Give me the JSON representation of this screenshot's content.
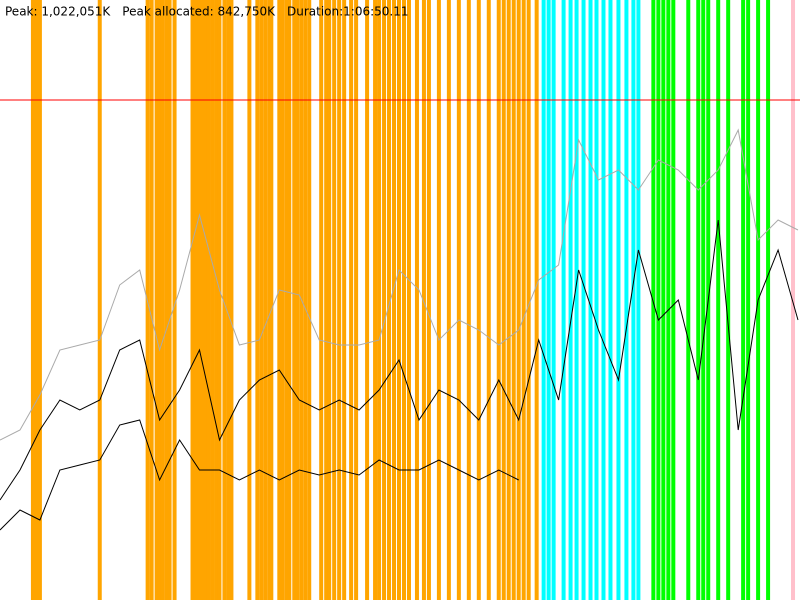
{
  "chart_data": {
    "type": "line",
    "header": [
      "Peak: 1,022,051K",
      "Peak allocated: 842,750K",
      "Duration:1:06:50.11"
    ],
    "xlim": [
      0,
      4010
    ],
    "ylim": [
      0,
      1226461
    ],
    "peak_line": {
      "value": 1022051,
      "color": "#ff0000"
    },
    "x": [
      0,
      100,
      200,
      300,
      400,
      500,
      600,
      700,
      800,
      900,
      1000,
      1100,
      1200,
      1300,
      1400,
      1500,
      1600,
      1700,
      1800,
      1900,
      2000,
      2100,
      2200,
      2300,
      2400,
      2500,
      2600,
      2700,
      2800,
      2900,
      3000,
      3100,
      3200,
      3300,
      3400,
      3500,
      3600,
      3700,
      3800,
      3900,
      4000
    ],
    "events": [
      {
        "color": "#ffa500",
        "x": [
          165,
          175,
          190,
          200,
          500,
          740,
          760,
          785,
          800,
          815,
          835,
          850,
          875,
          965,
          980,
          1000,
          1015,
          1030,
          1045,
          1065,
          1085,
          1100,
          1125,
          1145,
          1160,
          1250,
          1290,
          1310,
          1330,
          1350,
          1360,
          1400,
          1415,
          1435,
          1450,
          1475,
          1490,
          1510,
          1530,
          1550,
          1610,
          1635,
          1650,
          1675,
          1700,
          1725,
          1760,
          1785,
          1840,
          1880,
          1900,
          1925,
          1950,
          1975,
          2000,
          2025,
          2050,
          2090,
          2125,
          2150,
          2200,
          2250,
          2300,
          2350,
          2400,
          2450,
          2500,
          2525,
          2550,
          2575,
          2600,
          2625,
          2650,
          2690
        ]
      },
      {
        "color": "#00ffff",
        "x": [
          2725,
          2750,
          2775,
          2825,
          2860,
          2890,
          2925,
          2960,
          2990,
          3025,
          3060,
          3100,
          3140,
          3175,
          3200
        ]
      },
      {
        "color": "#00ff00",
        "x": [
          3275,
          3300,
          3325,
          3350,
          3375,
          3450,
          3500,
          3525,
          3550,
          3600,
          3650,
          3725,
          3750,
          3800,
          3850
        ]
      },
      {
        "color": "#ffc0cb",
        "x": [
          3975
        ]
      }
    ],
    "series": [
      {
        "color": "#aaaaaa",
        "values": [
          327000,
          347500,
          419000,
          511000,
          521200,
          531400,
          643900,
          674500,
          511000,
          633600,
          787000,
          633600,
          521200,
          531400,
          633600,
          623400,
          531400,
          521200,
          521200,
          531400,
          674500,
          633600,
          531400,
          572300,
          551900,
          521200,
          551900,
          654100,
          684700,
          940200,
          858500,
          878900,
          838000,
          899400,
          878900,
          838000,
          878900,
          960700,
          735800,
          776700,
          756300
        ]
      },
      {
        "color": "#000000",
        "values": [
          204400,
          265700,
          347500,
          408800,
          388400,
          408800,
          511000,
          531400,
          367900,
          429200,
          511000,
          327000,
          408800,
          449700,
          470100,
          408800,
          388400,
          408800,
          388400,
          429200,
          490600,
          367900,
          429200,
          408800,
          367900,
          449700,
          367900,
          531400,
          408800,
          674500,
          551900,
          449700,
          715400,
          572300,
          613200,
          449700,
          776700,
          347500,
          613200,
          715400,
          572300
        ]
      },
      {
        "color": "#000000",
        "values": [
          143100,
          184000,
          163500,
          265700,
          275900,
          286200,
          357700,
          367900,
          245300,
          327000,
          265700,
          265700,
          245300,
          265700,
          245300,
          265700,
          255500,
          265700,
          255500,
          286200,
          265700,
          265700,
          286200,
          265700,
          245300,
          265700,
          245300,
          null,
          null,
          null,
          null,
          null,
          null,
          null,
          null,
          null,
          null,
          null,
          null,
          null,
          null
        ]
      }
    ]
  }
}
